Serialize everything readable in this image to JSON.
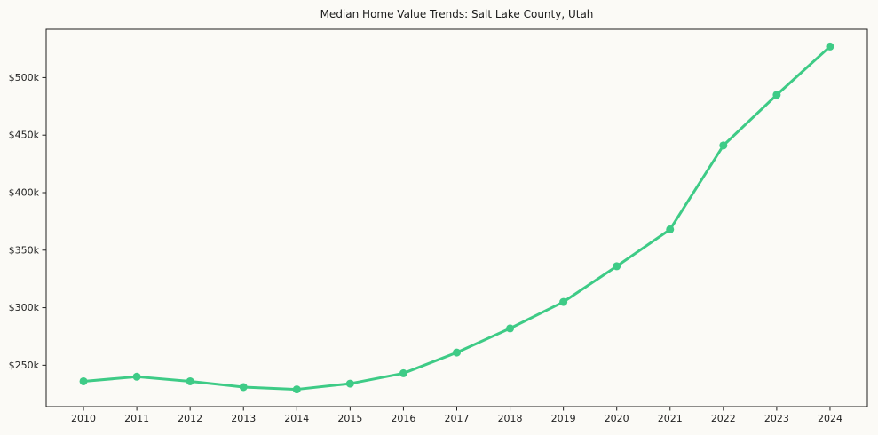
{
  "figure": {
    "background": "#fbfaf6"
  },
  "chart_data": {
    "type": "line",
    "title": "Median Home Value Trends: Salt Lake County, Utah",
    "x": [
      2010,
      2011,
      2012,
      2013,
      2014,
      2015,
      2016,
      2017,
      2018,
      2019,
      2020,
      2021,
      2022,
      2023,
      2024
    ],
    "series": [
      {
        "name": "Median Home Value",
        "values": [
          236000,
          240000,
          236000,
          231000,
          229000,
          234000,
          243000,
          261000,
          282000,
          305000,
          336000,
          368000,
          441000,
          485000,
          527000
        ],
        "color": "#3ecb86",
        "marker": "circle"
      }
    ],
    "xlabel": "",
    "ylabel": "",
    "xlim": [
      2009.3,
      2024.7
    ],
    "ylim": [
      214000,
      542000
    ],
    "yticks": {
      "values": [
        250000,
        300000,
        350000,
        400000,
        450000,
        500000
      ],
      "labels": [
        "$250k",
        "$300k",
        "$350k",
        "$400k",
        "$450k",
        "$500k"
      ]
    },
    "xticks": {
      "values": [
        2010,
        2011,
        2012,
        2013,
        2014,
        2015,
        2016,
        2017,
        2018,
        2019,
        2020,
        2021,
        2022,
        2023,
        2024
      ],
      "labels": [
        "2010",
        "2011",
        "2012",
        "2013",
        "2014",
        "2015",
        "2016",
        "2017",
        "2018",
        "2019",
        "2020",
        "2021",
        "2022",
        "2023",
        "2024"
      ]
    },
    "grid": false,
    "legend": "none",
    "frame": true,
    "axis_color": "#1f1f1f"
  }
}
